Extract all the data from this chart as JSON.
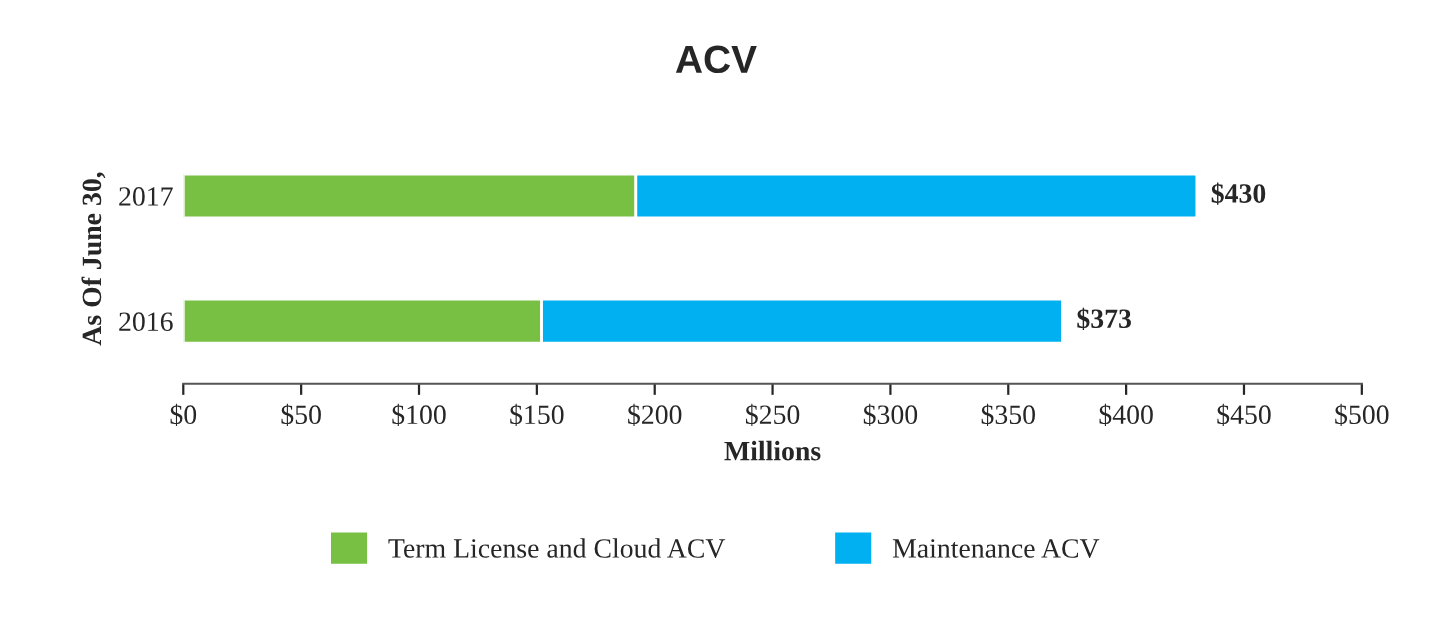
{
  "chart_data": {
    "type": "bar",
    "orientation": "horizontal",
    "stacked": true,
    "title": "ACV",
    "xlabel": "Millions",
    "ylabel": "As Of June 30,",
    "categories": [
      "2017",
      "2016"
    ],
    "series": [
      {
        "name": "Term License and Cloud ACV",
        "color": "#77c043",
        "values": [
          192,
          152
        ]
      },
      {
        "name": "Maintenance ACV",
        "color": "#00b0f0",
        "values": [
          238,
          221
        ]
      }
    ],
    "totals": [
      "$430",
      "$373"
    ],
    "xlim": [
      0,
      500
    ],
    "xticks": [
      {
        "value": 0,
        "label": "$0"
      },
      {
        "value": 50,
        "label": "$50"
      },
      {
        "value": 100,
        "label": "$100"
      },
      {
        "value": 150,
        "label": "$150"
      },
      {
        "value": 200,
        "label": "$200"
      },
      {
        "value": 250,
        "label": "$250"
      },
      {
        "value": 300,
        "label": "$300"
      },
      {
        "value": 350,
        "label": "$350"
      },
      {
        "value": 400,
        "label": "$400"
      },
      {
        "value": 450,
        "label": "$450"
      },
      {
        "value": 500,
        "label": "$500"
      }
    ],
    "grid": false,
    "legend": "bottom"
  }
}
